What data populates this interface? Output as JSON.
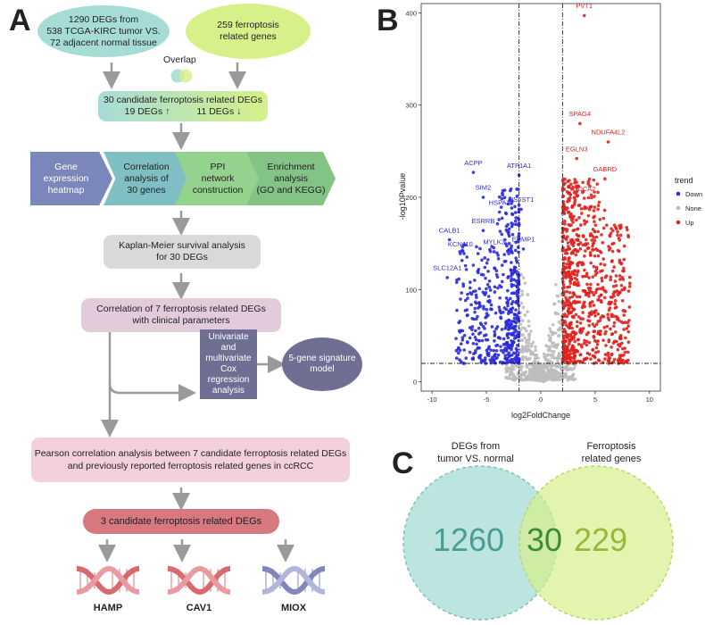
{
  "panel_labels": {
    "a": "A",
    "b": "B",
    "c": "C"
  },
  "flow": {
    "degs_source": "1290 DEGs  from\n538 TCGA-KIRC tumor VS.\n72 adjacent normal tissue",
    "ferroptosis_source": "259 ferroptosis\nrelated genes",
    "overlap_label": "Overlap",
    "candidates_line1": "30 candidate ferroptosis related DEGs",
    "candidates_up": "19 DEGs ↑",
    "candidates_down": "11 DEGs ↓",
    "steps": [
      "Gene\nexpression\nheatmap",
      "Correlation\nanalysis of\n30 genes",
      "PPI\nnetwork\nconstruction",
      "Enrichment\nanalysis\n(GO and KEGG)"
    ],
    "km": "Kaplan-Meier survival analysis\nfor 30 DEGs",
    "clinical": "Correlation of 7 ferroptosis related DEGs\nwith clinical parameters",
    "cox": "Univariate and\nmultivariate\nCox regression\nanalysis",
    "signature": "5-gene signature\nmodel",
    "pearson": "Pearson correlation analysis between 7 candidate ferroptosis related DEGs\nand previously reported ferroptosis related genes in ccRCC",
    "final": "3 candidate ferroptosis related DEGs",
    "genes": [
      "HAMP",
      "CAV1",
      "MIOX"
    ],
    "colors": {
      "teal": "#a6dcd6",
      "green": "#d6f08a",
      "gray": "#d7d9da",
      "mauve": "#e2ccdb",
      "slate": "#6f6f94",
      "pink": "#f4cfdc",
      "red": "#d77a80"
    }
  },
  "chart_data": {
    "type": "scatter",
    "title": "",
    "xlabel": "log2FoldChange",
    "ylabel": "-log10Pvalue",
    "xlim": [
      -11,
      11
    ],
    "ylim": [
      -10,
      410
    ],
    "xticks": [
      -10,
      -5,
      0,
      5,
      10
    ],
    "yticks": [
      0,
      100,
      200,
      300,
      400
    ],
    "vlines": [
      -2,
      2
    ],
    "hline": 20,
    "legend_title": "trend",
    "legend": [
      {
        "name": "Down",
        "color": "#2b2bd9"
      },
      {
        "name": "None",
        "color": "#bdbdbd"
      },
      {
        "name": "Up",
        "color": "#e0211e"
      }
    ],
    "labels": [
      {
        "text": "PVT1",
        "x": 4.0,
        "y": 405,
        "trend": "Up"
      },
      {
        "text": "SPAG4",
        "x": 3.6,
        "y": 288,
        "trend": "Up"
      },
      {
        "text": "NDUFA4L2",
        "x": 6.2,
        "y": 268,
        "trend": "Up"
      },
      {
        "text": "EGLN3",
        "x": 3.3,
        "y": 250,
        "trend": "Up"
      },
      {
        "text": "GABRD",
        "x": 5.9,
        "y": 228,
        "trend": "Up"
      },
      {
        "text": "CDCA2",
        "x": 4.0,
        "y": 207,
        "trend": "Up"
      },
      {
        "text": "ACPP",
        "x": -6.2,
        "y": 235,
        "trend": "Down"
      },
      {
        "text": "ATP1A1",
        "x": -2.0,
        "y": 232,
        "trend": "Down"
      },
      {
        "text": "SIM2",
        "x": -5.3,
        "y": 208,
        "trend": "Down"
      },
      {
        "text": "HSPA2",
        "x": -3.8,
        "y": 192,
        "trend": "Down"
      },
      {
        "text": "HS6ST1",
        "x": -1.8,
        "y": 195,
        "trend": "Down"
      },
      {
        "text": "ESRRB",
        "x": -5.3,
        "y": 172,
        "trend": "Down"
      },
      {
        "text": "CALB1",
        "x": -8.4,
        "y": 162,
        "trend": "Down"
      },
      {
        "text": "KCNJ10",
        "x": -7.4,
        "y": 147,
        "trend": "Down"
      },
      {
        "text": "MYLK3",
        "x": -4.3,
        "y": 149,
        "trend": "Down"
      },
      {
        "text": "ERMP1",
        "x": -1.6,
        "y": 152,
        "trend": "Down"
      },
      {
        "text": "SLC12A1",
        "x": -8.6,
        "y": 121,
        "trend": "Down"
      }
    ]
  },
  "venn": {
    "left_title": "DEGs  from\ntumor VS. normal",
    "right_title": "Ferroptosis\nrelated genes",
    "left_only": "1260",
    "overlap": "30",
    "right_only": "229"
  }
}
